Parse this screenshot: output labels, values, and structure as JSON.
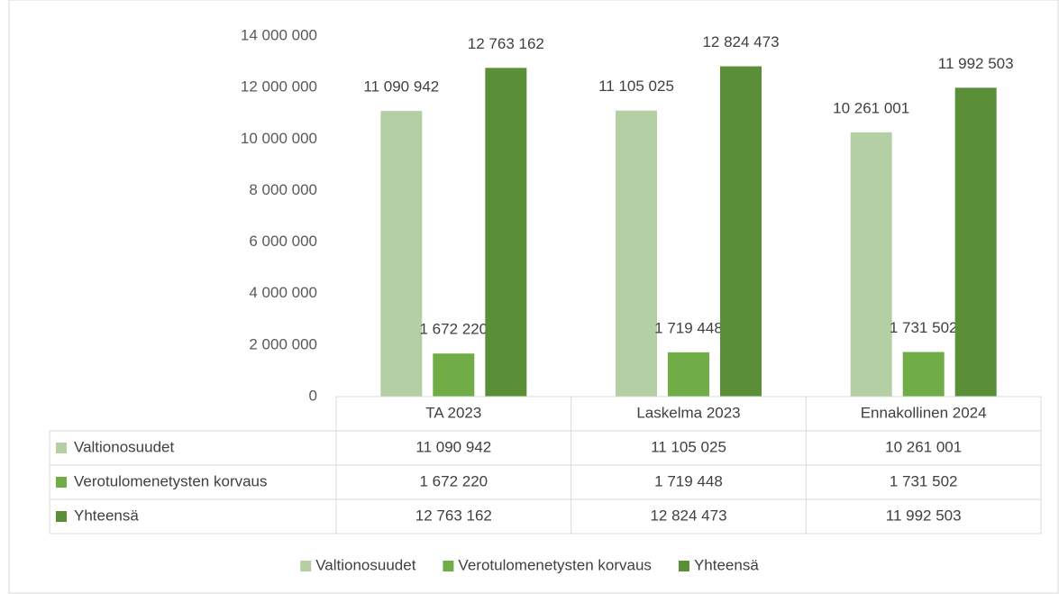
{
  "chart_data": {
    "type": "bar",
    "categories": [
      "TA 2023",
      "Laskelma 2023",
      "Ennakollinen 2024"
    ],
    "series": [
      {
        "name": "Valtionosuudet",
        "color": "#b4cfa4",
        "values": [
          11090942,
          11105025,
          10261001
        ],
        "value_labels": [
          "11 090 942",
          "11 105 025",
          "10 261 001"
        ]
      },
      {
        "name": "Verotulomenetysten korvaus",
        "color": "#70ad47",
        "values": [
          1672220,
          1719448,
          1731502
        ],
        "value_labels": [
          "1 672 220",
          "1 719 448",
          "1 731 502"
        ]
      },
      {
        "name": "Yhteensä",
        "color": "#5a8f37",
        "values": [
          12763162,
          12824473,
          11992503
        ],
        "value_labels": [
          "12 763 162",
          "12 824 473",
          "11 992 503"
        ]
      }
    ],
    "ylim": [
      0,
      14000000
    ],
    "yticks": [
      0,
      {
        "value": 2000000,
        "label": "2 000 000"
      },
      {
        "value": 4000000,
        "label": "4 000 000"
      },
      {
        "value": 6000000,
        "label": "6 000 000"
      },
      {
        "value": 8000000,
        "label": "8 000 000"
      },
      {
        "value": 10000000,
        "label": "10 000 000"
      },
      {
        "value": 12000000,
        "label": "12 000 000"
      },
      {
        "value": 14000000,
        "label": "14 000 000"
      }
    ],
    "grid": false,
    "data_table": true,
    "legend": "bottom"
  }
}
